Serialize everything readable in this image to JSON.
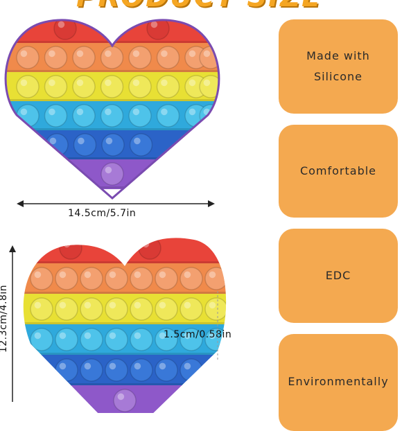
{
  "header": {
    "title": "PRODUCT SIZE"
  },
  "features": [
    {
      "lines": [
        "Made with",
        "Silicone"
      ]
    },
    {
      "lines": [
        "Comfortable"
      ]
    },
    {
      "lines": [
        "EDC"
      ]
    },
    {
      "lines": [
        "Environmentally"
      ]
    }
  ],
  "dimensions": {
    "width": "14.5cm/5.7in",
    "height": "12.3cm/4.8in",
    "thickness": "1.5cm/0.58in"
  },
  "bands": [
    {
      "color": "#e8443a",
      "bubble": "#d93a35"
    },
    {
      "color": "#f08a4b",
      "bubble": "#f3a070"
    },
    {
      "color": "#e8e034",
      "bubble": "#efe85a"
    },
    {
      "color": "#2fa9dc",
      "bubble": "#4ec3ea"
    },
    {
      "color": "#2b63c7",
      "bubble": "#3978d8"
    },
    {
      "color": "#8e58c9",
      "bubble": "#a77ad6"
    }
  ]
}
